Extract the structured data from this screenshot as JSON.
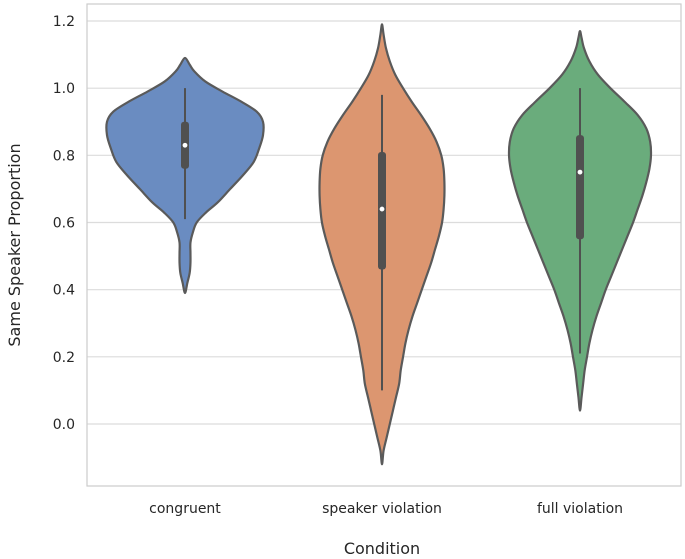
{
  "chart_data": {
    "type": "violin",
    "xlabel": "Condition",
    "ylabel": "Same Speaker Proportion",
    "ylim": [
      -0.2,
      1.22
    ],
    "yticks": [
      "0.0",
      "0.2",
      "0.4",
      "0.6",
      "0.8",
      "1.0",
      "1.2"
    ],
    "ytick_values": [
      0.0,
      0.2,
      0.4,
      0.6,
      0.8,
      1.0,
      1.2
    ],
    "grid": "horizontal",
    "categories": [
      "congruent",
      "speaker violation",
      "full violation"
    ],
    "colors": [
      "#6a8cc1",
      "#dc9670",
      "#6aac7c"
    ],
    "violins": [
      {
        "category": "congruent",
        "kde_range": [
          0.39,
          1.09
        ],
        "density_profile": [
          [
            0.39,
            0.0
          ],
          [
            0.42,
            0.03
          ],
          [
            0.45,
            0.06
          ],
          [
            0.48,
            0.07
          ],
          [
            0.51,
            0.07
          ],
          [
            0.54,
            0.07
          ],
          [
            0.57,
            0.1
          ],
          [
            0.6,
            0.15
          ],
          [
            0.63,
            0.27
          ],
          [
            0.66,
            0.42
          ],
          [
            0.7,
            0.58
          ],
          [
            0.74,
            0.74
          ],
          [
            0.78,
            0.88
          ],
          [
            0.82,
            0.95
          ],
          [
            0.86,
            1.0
          ],
          [
            0.9,
            1.0
          ],
          [
            0.93,
            0.92
          ],
          [
            0.96,
            0.72
          ],
          [
            0.99,
            0.48
          ],
          [
            1.02,
            0.26
          ],
          [
            1.05,
            0.12
          ],
          [
            1.07,
            0.06
          ],
          [
            1.09,
            0.0
          ]
        ],
        "whisker": [
          0.61,
          1.0
        ],
        "quartiles": [
          0.76,
          0.9
        ],
        "median": 0.83
      },
      {
        "category": "speaker violation",
        "kde_range": [
          -0.12,
          1.19
        ],
        "density_profile": [
          [
            -0.12,
            0.0
          ],
          [
            -0.08,
            0.02
          ],
          [
            -0.04,
            0.06
          ],
          [
            0.0,
            0.1
          ],
          [
            0.04,
            0.14
          ],
          [
            0.08,
            0.18
          ],
          [
            0.12,
            0.22
          ],
          [
            0.16,
            0.24
          ],
          [
            0.2,
            0.27
          ],
          [
            0.24,
            0.3
          ],
          [
            0.28,
            0.34
          ],
          [
            0.32,
            0.39
          ],
          [
            0.36,
            0.45
          ],
          [
            0.4,
            0.51
          ],
          [
            0.44,
            0.57
          ],
          [
            0.48,
            0.63
          ],
          [
            0.52,
            0.68
          ],
          [
            0.56,
            0.73
          ],
          [
            0.6,
            0.77
          ],
          [
            0.64,
            0.79
          ],
          [
            0.68,
            0.8
          ],
          [
            0.72,
            0.8
          ],
          [
            0.76,
            0.79
          ],
          [
            0.8,
            0.76
          ],
          [
            0.84,
            0.7
          ],
          [
            0.88,
            0.61
          ],
          [
            0.92,
            0.5
          ],
          [
            0.96,
            0.38
          ],
          [
            1.0,
            0.27
          ],
          [
            1.04,
            0.17
          ],
          [
            1.08,
            0.1
          ],
          [
            1.12,
            0.05
          ],
          [
            1.16,
            0.02
          ],
          [
            1.19,
            0.0
          ]
        ],
        "whisker": [
          0.1,
          0.98
        ],
        "quartiles": [
          0.46,
          0.81
        ],
        "median": 0.64
      },
      {
        "category": "full violation",
        "kde_range": [
          0.04,
          1.17
        ],
        "density_profile": [
          [
            0.04,
            0.0
          ],
          [
            0.08,
            0.02
          ],
          [
            0.12,
            0.04
          ],
          [
            0.16,
            0.06
          ],
          [
            0.2,
            0.09
          ],
          [
            0.24,
            0.12
          ],
          [
            0.28,
            0.16
          ],
          [
            0.32,
            0.21
          ],
          [
            0.36,
            0.27
          ],
          [
            0.4,
            0.33
          ],
          [
            0.44,
            0.4
          ],
          [
            0.48,
            0.47
          ],
          [
            0.52,
            0.54
          ],
          [
            0.56,
            0.61
          ],
          [
            0.6,
            0.68
          ],
          [
            0.64,
            0.74
          ],
          [
            0.68,
            0.8
          ],
          [
            0.72,
            0.85
          ],
          [
            0.76,
            0.89
          ],
          [
            0.8,
            0.91
          ],
          [
            0.84,
            0.9
          ],
          [
            0.88,
            0.85
          ],
          [
            0.92,
            0.74
          ],
          [
            0.96,
            0.57
          ],
          [
            1.0,
            0.39
          ],
          [
            1.04,
            0.23
          ],
          [
            1.08,
            0.12
          ],
          [
            1.12,
            0.05
          ],
          [
            1.15,
            0.02
          ],
          [
            1.17,
            0.0
          ]
        ],
        "whisker": [
          0.21,
          1.0
        ],
        "quartiles": [
          0.55,
          0.86
        ],
        "median": 0.75
      }
    ]
  }
}
